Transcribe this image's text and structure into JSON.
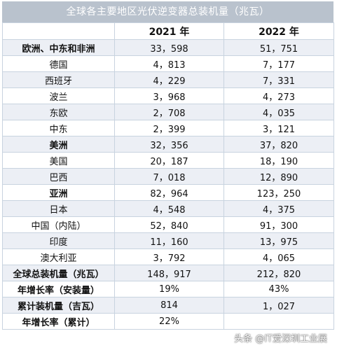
{
  "title": "全球各主要地区光伏逆变器总装机量（兆瓦）",
  "columns": [
    "",
    "2021 年",
    "2022 年"
  ],
  "rows": [
    {
      "label": "欧洲、中东和非洲",
      "y2021": "33，598",
      "y2022": "51，751",
      "bold": true
    },
    {
      "label": "德国",
      "y2021": "4，813",
      "y2022": "7，177",
      "bold": false
    },
    {
      "label": "西班牙",
      "y2021": "4，229",
      "y2022": "7，331",
      "bold": false
    },
    {
      "label": "波兰",
      "y2021": "3，968",
      "y2022": "4，273",
      "bold": false
    },
    {
      "label": "东欧",
      "y2021": "2，708",
      "y2022": "4，035",
      "bold": false
    },
    {
      "label": "中东",
      "y2021": "2，399",
      "y2022": "3，121",
      "bold": false
    },
    {
      "label": "美洲",
      "y2021": "32，356",
      "y2022": "37，820",
      "bold": true
    },
    {
      "label": "美国",
      "y2021": "20，187",
      "y2022": "18，190",
      "bold": false
    },
    {
      "label": "巴西",
      "y2021": "7，018",
      "y2022": "12，890",
      "bold": false
    },
    {
      "label": "亚洲",
      "y2021": "82，964",
      "y2022": "123，250",
      "bold": true
    },
    {
      "label": "日本",
      "y2021": "4，548",
      "y2022": "4，375",
      "bold": false
    },
    {
      "label": "中国（内陆）",
      "y2021": "52，840",
      "y2022": "91，300",
      "bold": false
    },
    {
      "label": "印度",
      "y2021": "11，160",
      "y2022": "13，975",
      "bold": false
    },
    {
      "label": "澳大利亚",
      "y2021": "3，792",
      "y2022": "4，065",
      "bold": false
    },
    {
      "label": "全球总装机量（兆瓦）",
      "y2021": "148，917",
      "y2022": "212，820",
      "bold": true
    },
    {
      "label": "年增长率（安装量）",
      "y2021": "19%",
      "y2022": "43%",
      "bold": true
    },
    {
      "label": "累计装机量（吉瓦）",
      "y2021": "814",
      "y2022": "1，027",
      "bold": true
    },
    {
      "label": "年增长率（累计）",
      "y2021": "22%",
      "y2022": "",
      "bold": true
    }
  ],
  "watermark": "头条 @IT爱深圳工业展",
  "colors": {
    "title_bg": "#b9c2cd",
    "row_alt_bg": "#eceff5",
    "border": "#c8d3df"
  }
}
